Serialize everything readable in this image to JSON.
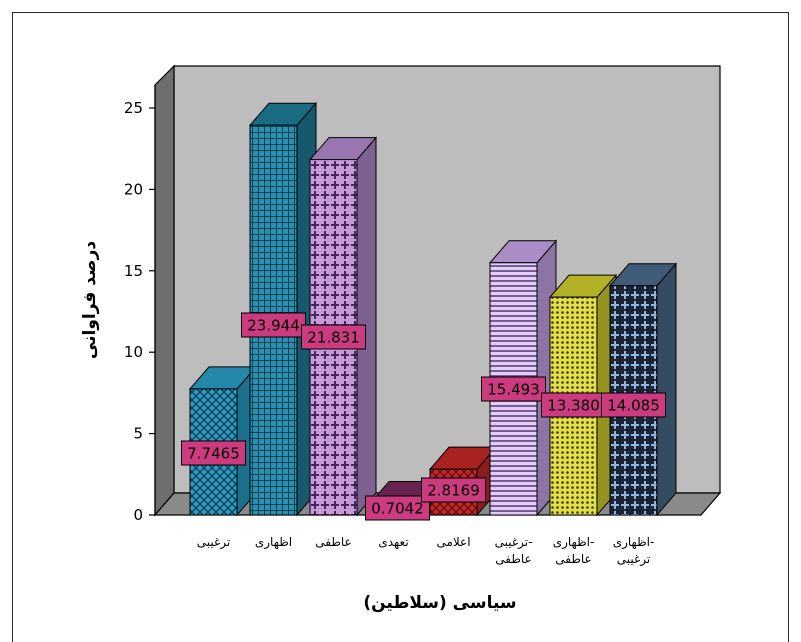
{
  "chart_data": {
    "type": "bar",
    "style": "3d",
    "xlabel": "سیاسی (سلاطین)",
    "ylabel": "درصد فراوانی",
    "ylim": [
      0,
      25
    ],
    "yticks": [
      "0",
      "5",
      "10",
      "15",
      "20",
      "25"
    ],
    "grid": false,
    "categories": [
      [
        "ترغیبی"
      ],
      [
        "اظهاری"
      ],
      [
        "عاطفی"
      ],
      [
        "تعهدی"
      ],
      [
        "اعلامی"
      ],
      [
        "ترغیبی-",
        "عاطفی"
      ],
      [
        "اظهاری-",
        "عاطفی"
      ],
      [
        "اظهاری-",
        "ترغیبی"
      ]
    ],
    "values": [
      7.7465,
      23.944,
      21.831,
      0.7042,
      2.8169,
      15.493,
      13.38,
      14.085
    ],
    "data_labels": [
      "7.7465",
      "23.944",
      "21.831",
      "0.7042",
      "2.8169",
      "15.493",
      "13.380",
      "14.085"
    ],
    "bar_colors": [
      "#2aa0c9",
      "#1f7f9a",
      "#b48bcf",
      "#7a2a5e",
      "#c62828",
      "#c8a6ea",
      "#d3d12e",
      "#4a6b8a"
    ],
    "colors": {
      "panel": "#bdbdbd",
      "wall_side": "#6e6e6e",
      "floor": "#8a8a8a",
      "label_box": "#cc3a7f"
    }
  }
}
